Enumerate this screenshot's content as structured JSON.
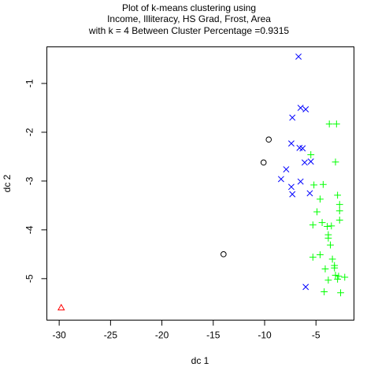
{
  "chart_data": {
    "type": "scatter",
    "title_lines": [
      "Plot of k-means clustering using",
      "Income, Illiteracy, HS Grad, Frost, Area",
      "with  k = 4 Between Cluster Percentage =0.9315"
    ],
    "xlabel": "dc 1",
    "ylabel": "dc 2",
    "xlim": [
      -31.2,
      -1.3
    ],
    "ylim": [
      -5.85,
      -0.25
    ],
    "x_ticks": [
      -30,
      -25,
      -20,
      -15,
      -10,
      -5
    ],
    "x_tick_labels": [
      "-30",
      "-25",
      "-20",
      "-15",
      "-10",
      "-5"
    ],
    "y_ticks": [
      -1,
      -2,
      -3,
      -4,
      -5
    ],
    "y_tick_labels": [
      "-1",
      "-2",
      "-3",
      "-4",
      "-5"
    ],
    "grid": false,
    "series": [
      {
        "marker": "circle",
        "color": "#000000",
        "points": [
          [
            -9.6,
            -2.15
          ],
          [
            -10.1,
            -2.62
          ],
          [
            -14.0,
            -4.5
          ]
        ]
      },
      {
        "marker": "triangle",
        "color": "#ff0000",
        "points": [
          [
            -29.8,
            -5.6
          ]
        ]
      },
      {
        "marker": "cross",
        "color": "#0000ff",
        "points": [
          [
            -6.7,
            -0.45
          ],
          [
            -6.5,
            -1.5
          ],
          [
            -6.0,
            -1.53
          ],
          [
            -7.3,
            -1.7
          ],
          [
            -6.6,
            -2.32
          ],
          [
            -6.3,
            -2.33
          ],
          [
            -7.4,
            -2.23
          ],
          [
            -6.1,
            -2.62
          ],
          [
            -5.5,
            -2.6
          ],
          [
            -7.9,
            -2.76
          ],
          [
            -8.4,
            -2.96
          ],
          [
            -6.5,
            -3.01
          ],
          [
            -7.4,
            -3.12
          ],
          [
            -7.3,
            -3.27
          ],
          [
            -5.6,
            -3.25
          ],
          [
            -6.0,
            -5.17
          ]
        ]
      },
      {
        "marker": "plus",
        "color": "#00ff00",
        "points": [
          [
            -3.7,
            -1.83
          ],
          [
            -3.0,
            -1.83
          ],
          [
            -5.5,
            -2.46
          ],
          [
            -3.1,
            -2.61
          ],
          [
            -4.3,
            -3.07
          ],
          [
            -5.2,
            -3.08
          ],
          [
            -2.9,
            -3.29
          ],
          [
            -4.6,
            -3.37
          ],
          [
            -2.7,
            -3.48
          ],
          [
            -2.7,
            -3.61
          ],
          [
            -4.9,
            -3.63
          ],
          [
            -2.7,
            -3.8
          ],
          [
            -4.4,
            -3.85
          ],
          [
            -5.3,
            -3.9
          ],
          [
            -3.9,
            -3.93
          ],
          [
            -3.5,
            -3.92
          ],
          [
            -3.8,
            -4.1
          ],
          [
            -3.8,
            -4.17
          ],
          [
            -3.6,
            -4.31
          ],
          [
            -4.6,
            -4.51
          ],
          [
            -5.3,
            -4.56
          ],
          [
            -3.4,
            -4.6
          ],
          [
            -3.2,
            -4.73
          ],
          [
            -3.2,
            -4.78
          ],
          [
            -4.1,
            -4.8
          ],
          [
            -3.1,
            -4.93
          ],
          [
            -2.8,
            -4.95
          ],
          [
            -2.2,
            -4.97
          ],
          [
            -2.9,
            -5.01
          ],
          [
            -3.8,
            -5.03
          ],
          [
            -4.2,
            -5.27
          ],
          [
            -2.6,
            -5.29
          ]
        ]
      }
    ]
  }
}
